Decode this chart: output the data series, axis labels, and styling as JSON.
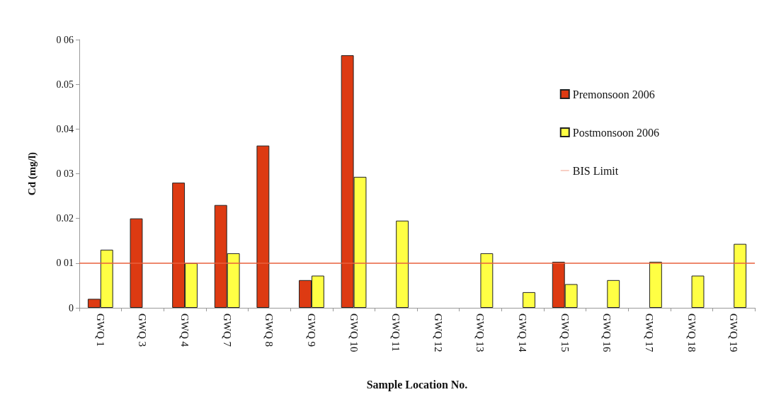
{
  "chart_data": {
    "type": "bar",
    "xlabel": "Sample Location No.",
    "ylabel": "Cd (mg/l)",
    "categories": [
      "GWQ 1",
      "GWQ 3",
      "GWQ 4",
      "GWQ 7",
      "GWQ 8",
      "GWQ 9",
      "GWQ 10",
      "GWQ 11",
      "GWQ 12",
      "GWQ 13",
      "GWQ 14",
      "GWQ 15",
      "GWQ 16",
      "GWQ 17",
      "GWQ 18",
      "GWQ 19"
    ],
    "series": [
      {
        "name": "Premonsoon 2006",
        "color": "#dd3a12",
        "values": [
          0.002,
          0.02,
          0.028,
          0.023,
          0.0363,
          0.0062,
          0.0565,
          null,
          null,
          null,
          null,
          0.0103,
          null,
          null,
          null,
          null
        ]
      },
      {
        "name": "Postmonsoon 2006",
        "color": "#ffff44",
        "values": [
          0.013,
          null,
          0.01,
          0.0122,
          null,
          0.0072,
          0.0293,
          0.0195,
          null,
          0.0122,
          0.0035,
          0.0053,
          0.0062,
          0.0103,
          0.0072,
          0.0143
        ]
      }
    ],
    "ylim": [
      0,
      0.06
    ],
    "yticks": [
      0,
      {
        "value": 0.01,
        "label": "0 01"
      },
      0.02,
      {
        "value": 0.03,
        "label": "0 03"
      },
      0.04,
      0.05,
      {
        "value": 0.06,
        "label": "0 06"
      }
    ],
    "ref_lines": [
      {
        "axis": "y",
        "value": 0.01,
        "label": "BIS Limit",
        "color": "#e8603c"
      }
    ],
    "grid": false,
    "legend": "right"
  }
}
